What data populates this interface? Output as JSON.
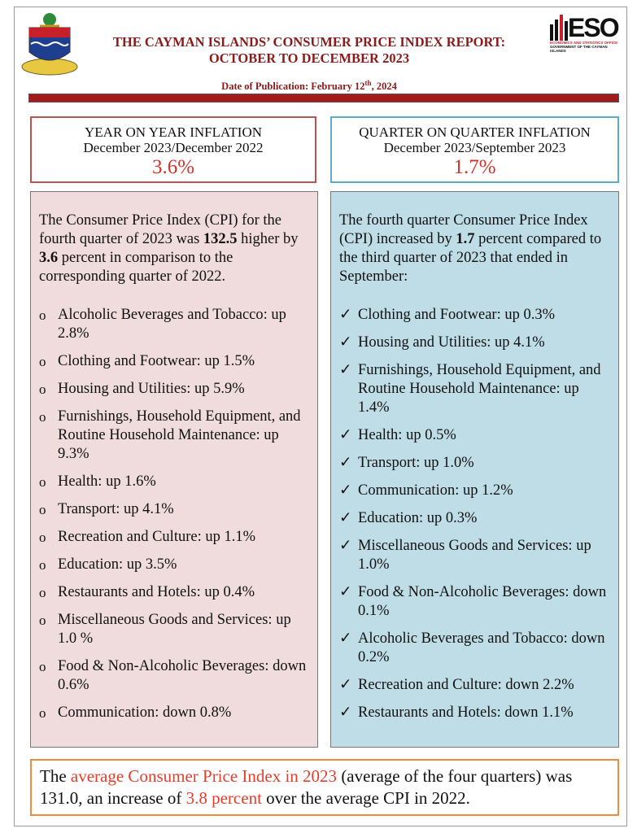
{
  "header": {
    "title_lines": [
      "THE CAYMAN ISLANDS’ CONSUMER PRICE INDEX REPORT:",
      "OCTOBER TO DECEMBER 2023"
    ],
    "date": [
      {
        "text": "Date of Publication: February 12"
      },
      {
        "text": "th",
        "style": "sup"
      },
      {
        "text": ", 2024"
      }
    ],
    "logo": {
      "name": "ESO",
      "line1": "ECONOMICS AND STATISTICS OFFICE",
      "line2": "GOVERNMENT OF THE CAYMAN ISLANDS"
    }
  },
  "yoy": {
    "title": "YEAR ON YEAR INFLATION",
    "period": "December 2023/December 2022",
    "value": "3.6%"
  },
  "qoq": {
    "title": "QUARTER ON QUARTER INFLATION",
    "period": "December 2023/September 2023",
    "value": "1.7%"
  },
  "left_panel": {
    "intro": [
      {
        "text": "The Consumer Price Index (CPI) for the fourth quarter of 2023 was "
      },
      {
        "text": "132.5",
        "style": "bold"
      },
      {
        "text": " higher by "
      },
      {
        "text": "3.6",
        "style": "bold"
      },
      {
        "text": " percent in comparison to the corresponding quarter of 2022."
      }
    ],
    "items": [
      "Alcoholic Beverages and Tobacco: up 2.8%",
      "Clothing and Footwear: up 1.5%",
      "Housing and Utilities: up 5.9%",
      "Furnishings, Household Equipment, and Routine Household Maintenance:  up 9.3%",
      "Health: up 1.6%",
      "Transport: up 4.1%",
      "Recreation and Culture: up 1.1%",
      "Education: up 3.5%",
      "Restaurants and Hotels: up 0.4%",
      "Miscellaneous Goods and Services: up 1.0 %",
      "Food & Non-Alcoholic Beverages: down 0.6%",
      "Communication: down 0.8%"
    ]
  },
  "right_panel": {
    "intro": [
      {
        "text": "The fourth quarter Consumer Price Index (CPI) increased by "
      },
      {
        "text": "1.7",
        "style": "bold"
      },
      {
        "text": " percent compared to the third quarter of 2023 that ended in September:"
      }
    ],
    "items": [
      "Clothing and Footwear: up 0.3%",
      "Housing and Utilities: up 4.1%",
      "Furnishings, Household Equipment, and Routine Household Maintenance: up 1.4%",
      "Health: up 0.5%",
      "Transport: up 1.0%",
      "Communication: up 1.2%",
      "Education: up 0.3%",
      "Miscellaneous Goods and Services: up 1.0%",
      "Food & Non-Alcoholic Beverages: down 0.1%",
      "Alcoholic Beverages and Tobacco: down 0.2%",
      "Recreation and Culture: down 2.2%",
      "Restaurants and Hotels: down 1.1%"
    ]
  },
  "footer": [
    {
      "text": "The "
    },
    {
      "text": "average Consumer Price Index in 2023",
      "style": "red"
    },
    {
      "text": " (average of the four quarters) was 131.0, an increase of "
    },
    {
      "text": "3.8 percent",
      "style": "red"
    },
    {
      "text": " over the average CPI in 2022."
    }
  ]
}
